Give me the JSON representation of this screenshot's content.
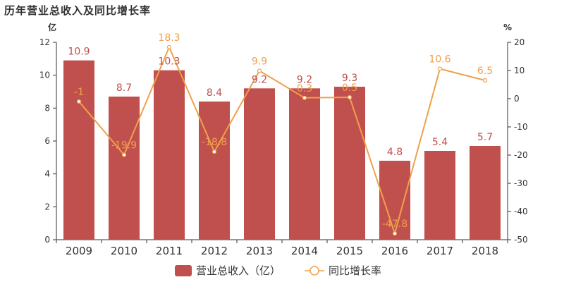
{
  "chart_data": {
    "type": "bar",
    "title": "历年营业总收入及同比增长率",
    "categories": [
      "2009",
      "2010",
      "2011",
      "2012",
      "2013",
      "2014",
      "2015",
      "2016",
      "2017",
      "2018"
    ],
    "series": [
      {
        "name": "营业总收入（亿）",
        "type": "bar",
        "axis": "left",
        "values": [
          10.9,
          8.7,
          10.3,
          8.4,
          9.2,
          9.2,
          9.3,
          4.8,
          5.4,
          5.7
        ],
        "labels": [
          "10.9",
          "8.7",
          "10.3",
          "8.4",
          "9.2",
          "9.2",
          "9.3",
          "4.8",
          "5.4",
          "5.7"
        ]
      },
      {
        "name": "同比增长率",
        "type": "line",
        "axis": "right",
        "values": [
          -1,
          -19.9,
          18.3,
          -18.8,
          9.9,
          0.3,
          0.5,
          -47.8,
          10.6,
          6.5
        ],
        "labels": [
          "-1",
          "-19.9",
          "18.3",
          "-18.8",
          "9.9",
          "0.3",
          "0.5",
          "-47.8",
          "10.6",
          "6.5"
        ]
      }
    ],
    "y_left": {
      "unit": "亿",
      "min": 0,
      "max": 12,
      "ticks": [
        "0",
        "2",
        "4",
        "6",
        "8",
        "10",
        "12"
      ]
    },
    "y_right": {
      "unit": "%",
      "min": -50,
      "max": 20,
      "ticks": [
        "-50",
        "-40",
        "-30",
        "-20",
        "-10",
        "0",
        "10",
        "20"
      ]
    },
    "grid": false,
    "legend_position": "bottom-center",
    "colors": {
      "bar": "#c0504d",
      "line": "#f0a04b",
      "axis": "#333333"
    }
  }
}
